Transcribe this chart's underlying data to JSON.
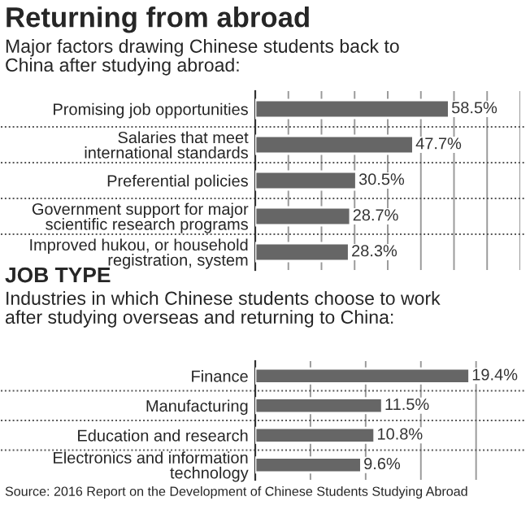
{
  "chart_data": [
    {
      "type": "bar",
      "orientation": "horizontal",
      "title": "Returning from abroad",
      "subtitle": "Major factors drawing Chinese students back to\nChina after studying abroad:",
      "categories": [
        "Promising job opportunities",
        "Salaries that meet\ninternational standards",
        "Preferential policies",
        "Government support for major\nscientific research programs",
        "Improved hukou, or household\nregistration, system"
      ],
      "values": [
        58.5,
        47.7,
        30.5,
        28.7,
        28.3
      ],
      "value_labels": [
        "58.5%",
        "47.7%",
        "30.5%",
        "28.7%",
        "28.3%"
      ],
      "color": "#666666",
      "xlim": [
        0,
        80
      ],
      "xticks": [
        {
          "value": 10,
          "label": null
        },
        {
          "value": 20,
          "label": null
        },
        {
          "value": 30,
          "label": null
        },
        {
          "value": 40,
          "label": null
        },
        {
          "value": 50,
          "label": null
        },
        {
          "value": 60,
          "label": null
        },
        {
          "value": 70,
          "label": null
        },
        {
          "value": 80,
          "label": null
        }
      ],
      "grid": "x",
      "tick_labels": "y"
    },
    {
      "type": "bar",
      "orientation": "horizontal",
      "title": "JOB TYPE",
      "subtitle": "Industries in which Chinese students choose to work\nafter studying overseas and returning to China:",
      "categories": [
        "Finance",
        "Manufacturing",
        "Education and research",
        "Electronics and information\ntechnology"
      ],
      "values": [
        19.4,
        11.5,
        10.8,
        9.6
      ],
      "value_labels": [
        "19.4%",
        "11.5%",
        "10.8%",
        "9.6%"
      ],
      "color": "#666666",
      "xlim": [
        0,
        24
      ],
      "xticks": [
        {
          "value": 5,
          "label": null
        },
        {
          "value": 10,
          "label": null
        },
        {
          "value": 15,
          "label": null
        },
        {
          "value": 20,
          "label": null
        }
      ],
      "grid": "x",
      "tick_labels": "y",
      "annotations": [
        "Source: 2016 Report on the Development of Chinese Students Studying Abroad"
      ]
    }
  ]
}
